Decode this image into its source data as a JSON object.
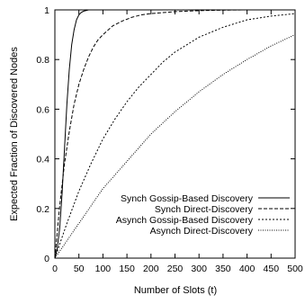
{
  "chart_data": {
    "type": "line",
    "xlabel": "Number of Slots (t)",
    "ylabel": "Expected Fraction of Discovered Nodes",
    "xlim": [
      0,
      500
    ],
    "ylim": [
      0,
      1
    ],
    "xticks": [
      0,
      50,
      100,
      150,
      200,
      250,
      300,
      350,
      400,
      450,
      500
    ],
    "yticks": [
      0,
      0.2,
      0.4,
      0.6,
      0.8,
      1
    ],
    "xtick_labels": [
      "0",
      "50",
      "100",
      "150",
      "200",
      "250",
      "300",
      "350",
      "400",
      "450",
      "500"
    ],
    "ytick_labels": [
      "0",
      "0.2",
      "0.4",
      "0.6",
      "0.8",
      "1"
    ],
    "grid": false,
    "legend_position": "bottom-right",
    "series": [
      {
        "name": "Synch Gossip-Based Discovery",
        "style": "solid",
        "color": "#000000",
        "x": [
          0,
          5,
          10,
          15,
          20,
          25,
          30,
          35,
          40,
          45,
          50,
          55,
          60,
          70,
          80,
          90,
          100,
          150,
          200,
          300,
          400,
          500
        ],
        "y": [
          0,
          0.04,
          0.12,
          0.26,
          0.44,
          0.62,
          0.76,
          0.86,
          0.92,
          0.96,
          0.98,
          0.99,
          0.995,
          1,
          1,
          1,
          1,
          1,
          1,
          1,
          1,
          1
        ]
      },
      {
        "name": "Synch Direct-Discovery",
        "style": "short-dash",
        "color": "#000000",
        "x": [
          0,
          10,
          20,
          30,
          40,
          50,
          60,
          70,
          80,
          90,
          100,
          120,
          140,
          160,
          180,
          200,
          250,
          300,
          350,
          400,
          450,
          500
        ],
        "y": [
          0,
          0.21,
          0.38,
          0.51,
          0.62,
          0.7,
          0.76,
          0.81,
          0.85,
          0.88,
          0.9,
          0.935,
          0.955,
          0.97,
          0.98,
          0.985,
          0.993,
          0.997,
          0.999,
          1,
          1,
          1
        ]
      },
      {
        "name": "Asynch Gossip-Based Discovery",
        "style": "long-dash",
        "color": "#000000",
        "x": [
          0,
          25,
          50,
          75,
          100,
          125,
          150,
          175,
          200,
          225,
          250,
          275,
          300,
          350,
          400,
          450,
          500
        ],
        "y": [
          0,
          0.14,
          0.27,
          0.38,
          0.48,
          0.56,
          0.63,
          0.69,
          0.74,
          0.79,
          0.83,
          0.86,
          0.89,
          0.93,
          0.96,
          0.975,
          0.985
        ]
      },
      {
        "name": "Asynch Direct-Discovery",
        "style": "dotted",
        "color": "#000000",
        "x": [
          0,
          25,
          50,
          75,
          100,
          150,
          200,
          250,
          300,
          350,
          400,
          450,
          500
        ],
        "y": [
          0,
          0.07,
          0.14,
          0.21,
          0.28,
          0.39,
          0.5,
          0.59,
          0.67,
          0.74,
          0.8,
          0.855,
          0.9
        ]
      }
    ]
  }
}
